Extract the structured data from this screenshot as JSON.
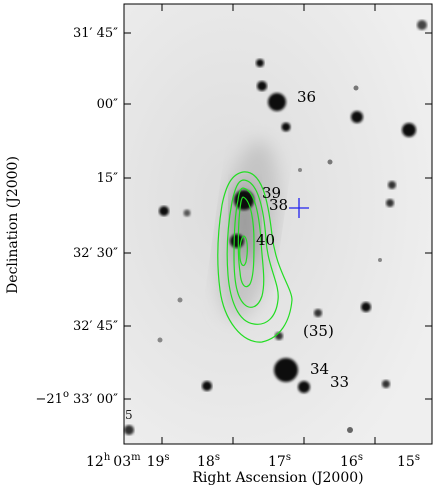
{
  "axes": {
    "xlabel": "Right Ascension (J2000)",
    "ylabel": "Declination (J2000)",
    "x_ticks": [
      {
        "h": "12",
        "hu": "h",
        "m": "03",
        "mu": "m",
        "s": "19",
        "su": "s"
      },
      {
        "s": "18",
        "su": "s"
      },
      {
        "s": "17",
        "su": "s"
      },
      {
        "s": "16",
        "su": "s"
      },
      {
        "s": "15",
        "su": "s"
      }
    ],
    "y_ticks": [
      {
        "text": "31′ 45″"
      },
      {
        "text": "00″"
      },
      {
        "text": "15″"
      },
      {
        "text": "32′ 30″"
      },
      {
        "text": "32′ 45″"
      },
      {
        "deg": "−21",
        "degu": "o",
        "rest": "33′ 00″"
      }
    ]
  },
  "objects": [
    {
      "label": "36"
    },
    {
      "label": "39"
    },
    {
      "label": "38"
    },
    {
      "label": "40"
    },
    {
      "label": "(35)"
    },
    {
      "label": "34"
    },
    {
      "label": "33"
    }
  ],
  "edge_label": "5",
  "colors": {
    "contour": "#22dd22",
    "cross": "#2222ee",
    "background": "#eeeeee"
  }
}
